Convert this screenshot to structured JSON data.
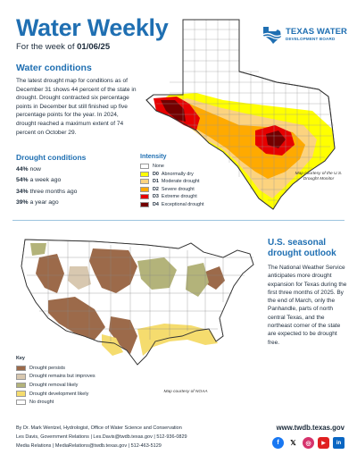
{
  "header": {
    "title": "Water Weekly",
    "week_prefix": "For the week of",
    "week_date": "01/06/25",
    "logo_line1": "TEXAS WATER",
    "logo_line2": "DEVELOPMENT BOARD"
  },
  "water_conditions": {
    "heading": "Water conditions",
    "body": "The latest drought map for conditions as of December 31 shows 44 percent of the state in drought. Drought contracted six percentage points in December but still finished up five percentage points for the year. In 2024, drought reached a maximum extent of 74 percent on October 29."
  },
  "drought_conditions": {
    "heading": "Drought conditions",
    "rows": [
      {
        "value": "44%",
        "label": "now"
      },
      {
        "value": "54%",
        "label": "a week ago"
      },
      {
        "value": "34%",
        "label": "three months ago"
      },
      {
        "value": "39%",
        "label": "a year ago"
      }
    ]
  },
  "tx_legend": {
    "heading": "Intensity",
    "items": [
      {
        "code": "",
        "label": "None",
        "color": "#ffffff"
      },
      {
        "code": "D0",
        "label": "Abnormally dry",
        "color": "#ffff00"
      },
      {
        "code": "D1",
        "label": "Moderate drought",
        "color": "#fcd37f"
      },
      {
        "code": "D2",
        "label": "Severe drought",
        "color": "#ffaa00"
      },
      {
        "code": "D3",
        "label": "Extreme drought",
        "color": "#e60000"
      },
      {
        "code": "D4",
        "label": "Exceptional drought",
        "color": "#730000"
      }
    ],
    "credit": "Map courtesy of the U.S. Drought Monitor"
  },
  "seasonal_outlook": {
    "heading": "U.S. seasonal drought outlook",
    "body": "The National Weather Service anticipates more drought expansion for Texas during the first three months of 2025. By the end of March, only the Panhandle, parts of north central Texas, and the northeast corner of the state are expected to be drought free."
  },
  "us_key": {
    "heading": "Key",
    "items": [
      {
        "label": "Drought persists",
        "color": "#9c6a4a"
      },
      {
        "label": "Drought remains but improves",
        "color": "#d8c8b0"
      },
      {
        "label": "Drought removal likely",
        "color": "#b3b37a"
      },
      {
        "label": "Drought development likely",
        "color": "#f5dc6e"
      },
      {
        "label": "No drought",
        "color": "#ffffff"
      }
    ],
    "credit": "Map courtesy of NOAA"
  },
  "footer": {
    "line1": "By Dr. Mark Wentzel, Hydrologist, Office of Water Science and Conservation",
    "line2": "Les Davis, Government Relations | Les.Davis@twdb.texas.gov | 512-936-0829",
    "line3": "Media Relations | MediaRelations@twdb.texas.gov | 512-463-5129",
    "website": "www.twdb.texas.gov",
    "social": [
      {
        "icon": "facebook-icon",
        "glyph": "f",
        "color": "#1877f2"
      },
      {
        "icon": "x-icon",
        "glyph": "𝕏",
        "color": "#ffffff"
      },
      {
        "icon": "instagram-icon",
        "glyph": "◎",
        "color": "#d6336c"
      },
      {
        "icon": "youtube-icon",
        "glyph": "▶",
        "color": "#e02020"
      },
      {
        "icon": "linkedin-icon",
        "glyph": "in",
        "color": "#0a66c2"
      }
    ]
  },
  "colors": {
    "brand_blue": "#1f6fb2",
    "divider": "#9cc4de"
  }
}
